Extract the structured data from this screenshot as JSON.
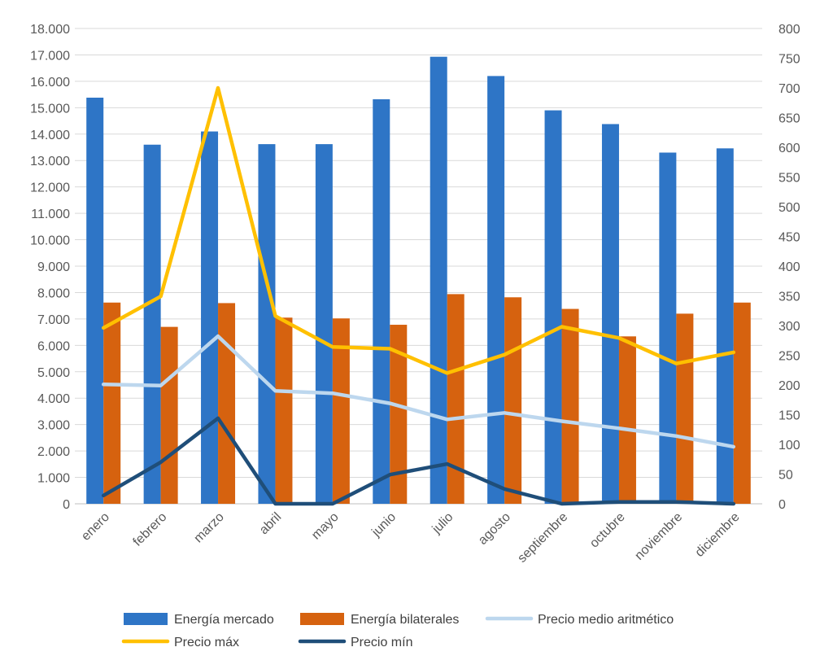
{
  "chart_data": {
    "type": "bar",
    "title": "",
    "xlabel": "",
    "ylabel": "",
    "categories": [
      "enero",
      "febrero",
      "marzo",
      "abril",
      "mayo",
      "junio",
      "julio",
      "agosto",
      "septiembre",
      "octubre",
      "noviembre",
      "diciembre"
    ],
    "y_left": {
      "ylim": [
        0,
        18000
      ],
      "ticks": [
        0,
        1000,
        2000,
        3000,
        4000,
        5000,
        6000,
        7000,
        8000,
        9000,
        10000,
        11000,
        12000,
        13000,
        14000,
        15000,
        16000,
        17000,
        18000
      ],
      "tick_labels": [
        "0",
        "1.000",
        "2.000",
        "3.000",
        "4.000",
        "5.000",
        "6.000",
        "7.000",
        "8.000",
        "9.000",
        "10.000",
        "11.000",
        "12.000",
        "13.000",
        "14.000",
        "15.000",
        "16.000",
        "17.000",
        "18.000"
      ]
    },
    "y_right": {
      "ylim": [
        0,
        800
      ],
      "ticks": [
        0,
        50,
        100,
        150,
        200,
        250,
        300,
        350,
        400,
        450,
        500,
        550,
        600,
        650,
        700,
        750,
        800
      ],
      "tick_labels": [
        "0",
        "50",
        "100",
        "150",
        "200",
        "250",
        "300",
        "350",
        "400",
        "450",
        "500",
        "550",
        "600",
        "650",
        "700",
        "750",
        "800"
      ]
    },
    "grid": true,
    "legend_position": "bottom",
    "series": [
      {
        "name": "Energía mercado",
        "type": "bar",
        "axis": "left",
        "color": "#2e75c6",
        "values": [
          15380,
          13600,
          14100,
          13620,
          13620,
          15320,
          16930,
          16200,
          14900,
          14380,
          13300,
          13460
        ]
      },
      {
        "name": "Energía bilaterales",
        "type": "bar",
        "axis": "left",
        "color": "#d6620f",
        "values": [
          7620,
          6700,
          7600,
          7050,
          7020,
          6780,
          7940,
          7820,
          7380,
          6340,
          7200,
          7620
        ]
      },
      {
        "name": "Precio medio aritmético",
        "type": "line",
        "axis": "right",
        "color": "#bdd7ee",
        "values": [
          201,
          199,
          282,
          190,
          186,
          169,
          142,
          153,
          139,
          127,
          114,
          96
        ]
      },
      {
        "name": "Precio máx",
        "type": "line",
        "axis": "right",
        "color": "#ffc000",
        "values": [
          296,
          349,
          700,
          316,
          264,
          261,
          220,
          251,
          298,
          279,
          236,
          255
        ]
      },
      {
        "name": "Precio mín",
        "type": "line",
        "axis": "right",
        "color": "#1f4e79",
        "values": [
          14,
          70,
          144,
          0,
          0,
          49,
          67,
          25,
          0,
          3,
          3,
          0
        ]
      }
    ]
  }
}
